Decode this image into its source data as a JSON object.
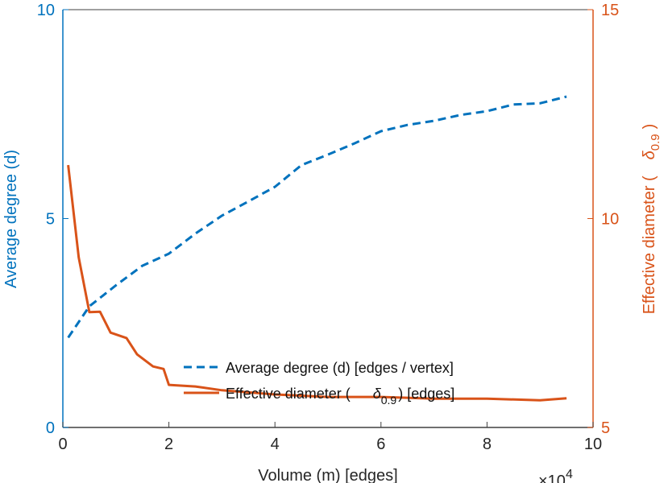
{
  "chart_data": {
    "type": "line",
    "xlabel": "Volume (m) [edges]",
    "x_multiplier": "×10",
    "x_multiplier_exp": "4",
    "xlim": [
      0,
      10
    ],
    "xticks": [
      "0",
      "2",
      "4",
      "6",
      "8",
      "10"
    ],
    "ylabel_left": "Average degree (d)",
    "ylim_left": [
      0,
      10
    ],
    "yticks_left": [
      "0",
      "5",
      "10"
    ],
    "ylabel_right": "Effective diameter (",
    "ylabel_right_symbol": "δ",
    "ylabel_right_sub": "0.9",
    "ylabel_right_close": ")",
    "ylim_right": [
      5,
      15
    ],
    "yticks_right": [
      "5",
      "10",
      "15"
    ],
    "legend_position": "bottom-center",
    "colors": {
      "left": "#0072BD",
      "right": "#D95319",
      "axis": "#404040"
    },
    "series": [
      {
        "name": "Average degree (d) [edges / vertex]",
        "axis": "left",
        "style": "dashed",
        "x": [
          0.1,
          0.5,
          1.0,
          1.5,
          2.0,
          2.5,
          3.0,
          3.5,
          4.0,
          4.5,
          5.0,
          5.5,
          6.0,
          6.5,
          7.0,
          7.5,
          8.0,
          8.5,
          9.0,
          9.5
        ],
        "y": [
          2.15,
          2.9,
          3.4,
          3.87,
          4.16,
          4.64,
          5.07,
          5.41,
          5.76,
          6.28,
          6.53,
          6.8,
          7.09,
          7.24,
          7.34,
          7.48,
          7.57,
          7.73,
          7.76,
          7.92
        ]
      },
      {
        "name_prefix": "Effective diameter (",
        "name_symbol": "δ",
        "name_sub": "0.9",
        "name_suffix": ") [edges]",
        "axis": "right",
        "style": "solid",
        "x": [
          0.1,
          0.3,
          0.5,
          0.7,
          0.9,
          1.2,
          1.4,
          1.7,
          1.9,
          2.0,
          2.5,
          3.0,
          4.0,
          5.0,
          6.0,
          7.0,
          8.0,
          9.0,
          9.5
        ],
        "y": [
          11.28,
          9.07,
          7.76,
          7.77,
          7.27,
          7.14,
          6.75,
          6.46,
          6.4,
          6.02,
          5.98,
          5.89,
          5.79,
          5.73,
          5.73,
          5.69,
          5.69,
          5.65,
          5.7
        ]
      }
    ]
  }
}
